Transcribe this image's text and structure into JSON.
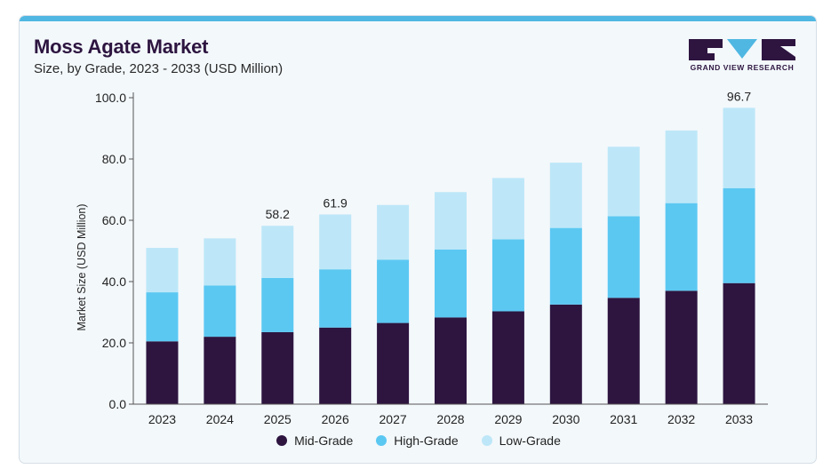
{
  "header": {
    "title": "Moss Agate Market",
    "subtitle": "Size, by Grade, 2023 - 2033 (USD Million)"
  },
  "logo": {
    "text": "GRAND VIEW RESEARCH",
    "color": "#2d1540"
  },
  "colors": {
    "mid": "#2d1540",
    "high": "#5bc8f2",
    "low": "#bde7f8",
    "accent": "#4fb7e2"
  },
  "chart_data": {
    "type": "bar",
    "stacked": true,
    "categories": [
      "2023",
      "2024",
      "2025",
      "2026",
      "2027",
      "2028",
      "2029",
      "2030",
      "2031",
      "2032",
      "2033"
    ],
    "series": [
      {
        "name": "Mid-Grade",
        "color": "#2d1540",
        "values": [
          20.5,
          22.0,
          23.5,
          25.0,
          26.5,
          28.3,
          30.3,
          32.5,
          34.7,
          37.0,
          39.5
        ]
      },
      {
        "name": "High-Grade",
        "color": "#5bc8f2",
        "values": [
          16.0,
          16.7,
          17.7,
          19.0,
          20.6,
          22.2,
          23.5,
          25.0,
          26.6,
          28.6,
          31.0
        ]
      },
      {
        "name": "Low-Grade",
        "color": "#bde7f8",
        "values": [
          14.5,
          15.4,
          17.0,
          17.9,
          17.9,
          18.7,
          20.0,
          21.3,
          22.7,
          23.7,
          26.2
        ]
      }
    ],
    "data_labels": [
      {
        "category": "2025",
        "text": "58.2"
      },
      {
        "category": "2026",
        "text": "61.9"
      },
      {
        "category": "2033",
        "text": "96.7"
      }
    ],
    "yticks": [
      "0.0",
      "20.0",
      "40.0",
      "60.0",
      "80.0",
      "100.0"
    ],
    "ylabel": "Market Size (USD Million)",
    "xlabel": "",
    "ylim": [
      0,
      100
    ],
    "grid": false,
    "legend_position": "bottom"
  }
}
